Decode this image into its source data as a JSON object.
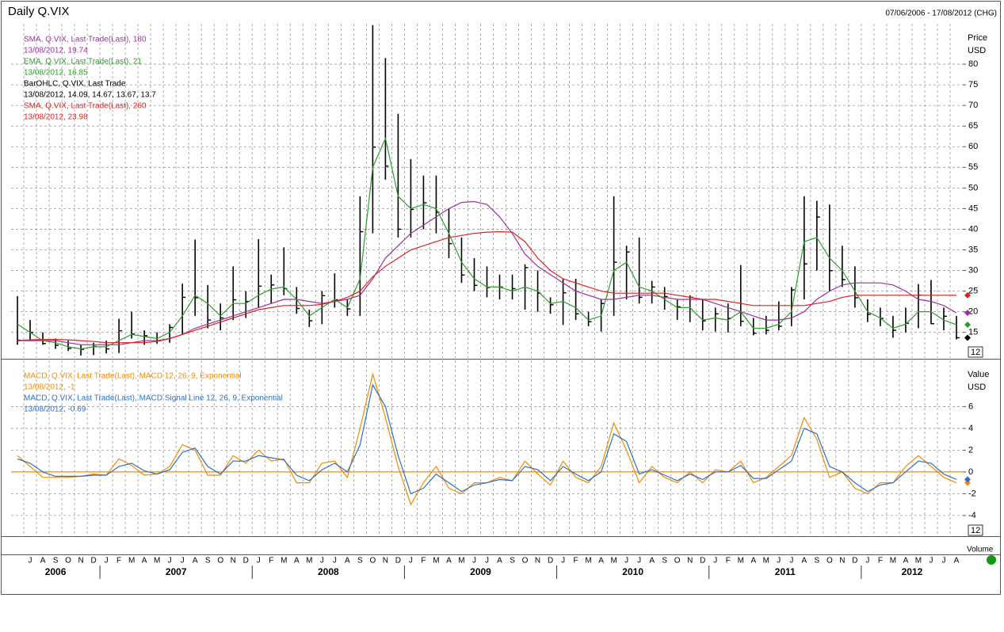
{
  "title": "Daily Q.VIX",
  "date_range": "07/06/2006 - 17/08/2012 (CHG)",
  "volume_label": "Volume",
  "chart_data": [
    {
      "type": "ohlc",
      "y_label": "Price",
      "y_unit": "USD",
      "badge": "12",
      "ylim": [
        8.8,
        89.8
      ],
      "yticks": [
        15,
        20,
        25,
        30,
        35,
        40,
        45,
        50,
        55,
        60,
        65,
        70,
        75,
        80
      ],
      "grid": true,
      "categories": [
        null,
        "J",
        "A",
        "S",
        "O",
        "N",
        "D",
        "J",
        "F",
        "M",
        "A",
        "M",
        "J",
        "J",
        "A",
        "S",
        "O",
        "N",
        "D",
        "J",
        "F",
        "M",
        "A",
        "M",
        "J",
        "J",
        "A",
        "S",
        "O",
        "N",
        "D",
        "J",
        "F",
        "M",
        "A",
        "M",
        "J",
        "J",
        "A",
        "S",
        "O",
        "N",
        "D",
        "J",
        "F",
        "M",
        "A",
        "M",
        "J",
        "J",
        "A",
        "S",
        "O",
        "N",
        "D",
        "J",
        "F",
        "M",
        "A",
        "M",
        "J",
        "J",
        "A",
        "S",
        "O",
        "N",
        "D",
        "J",
        "F",
        "M",
        "A",
        "M",
        "J",
        "J",
        "A"
      ],
      "years": [
        "2006",
        "2007",
        "2008",
        "2009",
        "2010",
        "2011",
        "2012"
      ],
      "series": [
        {
          "name": "SMA, Q.VIX, Last Trade(Last), 180",
          "last": "13/08/2012, 19.74",
          "color": "#993399",
          "values": [
            13,
            13,
            13,
            13,
            12.5,
            12,
            12,
            12,
            12,
            12.5,
            13,
            13,
            13.5,
            14.5,
            16,
            17,
            18,
            19,
            20,
            21,
            22,
            23,
            23,
            22.5,
            22,
            22.5,
            23,
            24,
            28,
            33,
            36,
            39,
            41,
            43,
            45,
            46.5,
            46.7,
            46,
            43,
            39,
            34,
            31,
            29,
            27,
            25,
            24,
            23,
            23,
            23.5,
            24,
            24,
            23.5,
            23,
            23,
            23,
            22,
            21,
            20,
            19,
            18,
            18,
            18.5,
            20,
            23,
            25,
            26.5,
            27,
            27,
            27,
            26.5,
            25,
            23,
            22.5,
            21.5,
            19.74
          ]
        },
        {
          "name": "EMA, Q.VIX, Last Trade(Last), 21",
          "last": "13/08/2012, 16.85",
          "color": "#2f9e2f",
          "values": [
            17,
            15,
            13,
            12.5,
            11.5,
            11,
            11.5,
            11.5,
            13,
            14.5,
            14,
            13.5,
            15,
            19,
            24,
            22,
            19,
            22,
            22,
            24,
            25.5,
            26,
            23,
            19,
            21,
            23,
            21,
            28,
            55,
            62,
            48,
            45,
            46,
            45,
            39,
            32,
            28,
            26,
            26,
            25,
            26,
            25,
            22,
            22.5,
            21,
            18,
            19,
            30,
            32,
            26,
            25,
            23,
            21,
            21,
            18,
            18.5,
            18,
            20,
            16,
            16,
            17,
            20,
            37,
            38,
            33,
            30,
            25,
            20,
            18.5,
            16,
            17,
            20,
            20,
            18,
            16.85
          ]
        },
        {
          "name": "BarOHLC, Q.VIX, Last Trade",
          "last": "13/08/2012, 14.09, 14.67, 13.67, 13.7",
          "color": "#000000",
          "high": [
            23.8,
            18,
            15,
            13.5,
            13,
            12,
            12.5,
            13,
            18.3,
            20,
            15.5,
            15,
            17,
            26.8,
            37.5,
            26.5,
            22,
            31,
            25,
            37.6,
            29,
            35.6,
            26,
            20.5,
            25,
            29.3,
            23,
            48,
            89.5,
            81.5,
            68,
            57,
            53,
            53,
            45,
            38,
            33,
            31,
            29,
            29,
            31.5,
            30,
            23.5,
            28,
            28,
            20,
            23,
            48,
            36,
            38,
            27.5,
            26,
            23,
            24,
            23,
            21,
            22,
            31.3,
            18.5,
            19,
            22.5,
            26,
            48,
            46.9,
            46,
            36,
            31,
            23,
            21,
            19,
            21,
            26.7,
            27.7,
            21,
            19
          ],
          "low": [
            12,
            13,
            12,
            11,
            10.5,
            9.4,
            9.5,
            9.9,
            10,
            13.5,
            12,
            12.2,
            12.5,
            14.5,
            19,
            16,
            15.5,
            18,
            18.5,
            21,
            22,
            24,
            19.5,
            16.3,
            17,
            21,
            19,
            19,
            39,
            52,
            38,
            38,
            40,
            39,
            33,
            27,
            25,
            23.5,
            23,
            23,
            20.5,
            20,
            19.5,
            16.8,
            18,
            16.5,
            15.2,
            19,
            23,
            22,
            22,
            20.5,
            18,
            17.5,
            15.5,
            15.2,
            15,
            16.5,
            14.3,
            14.5,
            15.5,
            16.5,
            23,
            30,
            25,
            26,
            21,
            17.5,
            16.5,
            13.7,
            15,
            16,
            17,
            15.5,
            13.3
          ],
          "values": [
            13.1,
            15,
            12.3,
            11.9,
            11.1,
            10.9,
            11.6,
            11,
            15.4,
            14.6,
            14.2,
            13,
            16.2,
            23.5,
            23.4,
            18,
            18.5,
            22.9,
            22.5,
            26.2,
            26.5,
            25.6,
            20.8,
            17.8,
            23.9,
            22.9,
            20.7,
            39.4,
            59.9,
            55.3,
            40,
            44.8,
            46.4,
            44.1,
            36.5,
            28.9,
            26.4,
            25.9,
            26,
            25.6,
            30.7,
            24.5,
            21.7,
            24.6,
            19.5,
            17.6,
            22,
            32,
            34.5,
            23.5,
            26,
            23.7,
            21.2,
            23.5,
            17.8,
            19.5,
            18.4,
            17.7,
            14.8,
            15.5,
            16.5,
            25.3,
            31.6,
            42.96,
            29.96,
            27.8,
            23.4,
            19.4,
            18.4,
            15.5,
            17.2,
            24,
            17.1,
            18.9,
            13.7
          ]
        },
        {
          "name": "SMA, Q.VIX, Last Trade(Last), 260",
          "last": "13/08/2012, 23.98",
          "color": "#dd2222",
          "values": [
            13,
            13.2,
            13.3,
            13.3,
            13.2,
            13,
            12.8,
            12.5,
            12.5,
            12.5,
            12.5,
            12.8,
            13.5,
            14.5,
            15.5,
            16.5,
            17.5,
            18.5,
            19.5,
            20.5,
            21,
            21.5,
            21.5,
            21.5,
            21.8,
            22.5,
            23.5,
            25,
            28.5,
            31,
            33,
            35,
            36,
            37,
            38,
            38.5,
            39,
            39.3,
            39.4,
            39.3,
            37,
            33,
            30,
            28,
            27,
            26,
            25,
            24.5,
            24.5,
            24.5,
            24.5,
            24.5,
            24,
            23.5,
            23,
            23,
            22.5,
            22,
            21.5,
            21.5,
            21.5,
            21.5,
            21.5,
            22,
            22.5,
            23.5,
            24,
            24,
            24,
            24,
            24,
            24,
            24,
            24,
            23.98
          ]
        }
      ]
    },
    {
      "type": "line",
      "y_label": "Value",
      "y_unit": "USD",
      "badge": "12",
      "ylim": [
        -5.9,
        10.25
      ],
      "yticks": [
        -4,
        -2,
        0,
        2,
        4,
        6
      ],
      "grid": true,
      "reference_line": {
        "value": 0,
        "color": "#f08c00"
      },
      "series": [
        {
          "name": "MACD, Q.VIX, Last Trade(Last), MACD 12, 26, 9, Exponential",
          "last": "13/08/2012, -1",
          "color": "#f08c00",
          "values": [
            1.5,
            0.5,
            -0.5,
            -0.5,
            -0.5,
            -0.4,
            -0.2,
            -0.3,
            1.2,
            0.6,
            -0.3,
            -0.2,
            0.5,
            2.5,
            2,
            -0.3,
            -0.3,
            1.5,
            0.8,
            2,
            1,
            1.2,
            -1,
            -1,
            0.8,
            1,
            -0.5,
            4,
            9,
            5,
            0.5,
            -3,
            -1,
            0.5,
            -1.5,
            -2,
            -1,
            -1,
            -0.5,
            -0.8,
            1,
            -0.2,
            -1.2,
            1,
            -0.5,
            -1,
            0.5,
            4.5,
            2,
            -1,
            0.5,
            -0.5,
            -1,
            0,
            -1,
            0.2,
            0,
            1,
            -1,
            -0.5,
            0.5,
            1.5,
            5,
            3,
            -0.5,
            0,
            -1.5,
            -2,
            -1,
            -1,
            0.5,
            1.5,
            0.5,
            -0.5,
            -1
          ]
        },
        {
          "name": "MACD, Q.VIX, Last Trade(Last), MACD Signal Line 12, 26, 9, Exponential",
          "last": "13/08/2012, -0.69",
          "color": "#3070c0",
          "values": [
            1.2,
            0.8,
            0,
            -0.4,
            -0.4,
            -0.4,
            -0.3,
            -0.3,
            0.5,
            0.8,
            0.1,
            -0.2,
            0.2,
            1.8,
            2.2,
            0.5,
            -0.2,
            1,
            1,
            1.5,
            1.3,
            1.1,
            -0.3,
            -0.8,
            0.2,
            0.8,
            0,
            2.5,
            8,
            6,
            1.5,
            -2,
            -1.5,
            -0.2,
            -1,
            -1.8,
            -1.2,
            -1,
            -0.7,
            -0.8,
            0.5,
            0.2,
            -0.8,
            0.5,
            -0.2,
            -0.8,
            0,
            3.5,
            2.8,
            -0.2,
            0.2,
            -0.3,
            -0.8,
            -0.2,
            -0.7,
            0,
            0,
            0.6,
            -0.6,
            -0.6,
            0.2,
            1,
            4,
            3.5,
            0.5,
            0,
            -1,
            -1.8,
            -1.2,
            -1,
            0,
            1,
            0.8,
            -0.2,
            -0.69
          ]
        }
      ]
    }
  ]
}
